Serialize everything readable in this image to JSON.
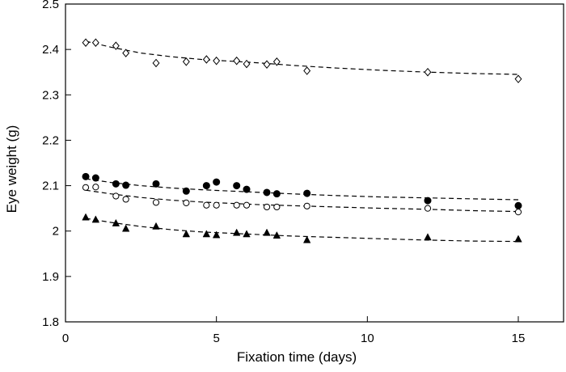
{
  "chart_data": {
    "type": "scatter",
    "xlabel": "Fixation time (days)",
    "ylabel": "Eye weight (g)",
    "xlim": [
      0,
      16.5
    ],
    "ylim": [
      1.8,
      2.5
    ],
    "x_ticks": [
      0,
      5,
      10,
      15
    ],
    "x_tick_labels": [
      "0",
      "5",
      "10",
      "15"
    ],
    "y_ticks": [
      1.8,
      1.9,
      2.0,
      2.1,
      2.2,
      2.3,
      2.4,
      2.5
    ],
    "y_tick_labels": [
      "1.8",
      "1.9",
      "2",
      "2.1",
      "2.2",
      "2.3",
      "2.4",
      "2.5"
    ],
    "grid": false,
    "legend": "none",
    "series": [
      {
        "marker": "open-diamond",
        "color": "#000000",
        "points": [
          [
            0.67,
            2.415
          ],
          [
            1.0,
            2.415
          ],
          [
            1.67,
            2.408
          ],
          [
            2.0,
            2.392
          ],
          [
            3.0,
            2.37
          ],
          [
            4.0,
            2.373
          ],
          [
            4.67,
            2.378
          ],
          [
            5.0,
            2.375
          ],
          [
            5.67,
            2.375
          ],
          [
            6.0,
            2.368
          ],
          [
            6.67,
            2.367
          ],
          [
            7.0,
            2.373
          ],
          [
            8.0,
            2.353
          ],
          [
            12.0,
            2.35
          ],
          [
            15.0,
            2.335
          ]
        ],
        "fit": [
          [
            0.67,
            2.418
          ],
          [
            1.5,
            2.405
          ],
          [
            2.5,
            2.392
          ],
          [
            3.5,
            2.384
          ],
          [
            4.5,
            2.378
          ],
          [
            5.5,
            2.374
          ],
          [
            6.5,
            2.37
          ],
          [
            7.5,
            2.365
          ],
          [
            9.0,
            2.359
          ],
          [
            10.5,
            2.354
          ],
          [
            12.0,
            2.35
          ],
          [
            13.5,
            2.347
          ],
          [
            15.0,
            2.345
          ]
        ]
      },
      {
        "marker": "filled-circle",
        "color": "#000000",
        "points": [
          [
            0.67,
            2.12
          ],
          [
            1.0,
            2.117
          ],
          [
            1.67,
            2.104
          ],
          [
            2.0,
            2.101
          ],
          [
            3.0,
            2.104
          ],
          [
            4.0,
            2.088
          ],
          [
            4.67,
            2.1
          ],
          [
            5.0,
            2.108
          ],
          [
            5.67,
            2.1
          ],
          [
            6.0,
            2.092
          ],
          [
            6.67,
            2.085
          ],
          [
            7.0,
            2.082
          ],
          [
            8.0,
            2.083
          ],
          [
            12.0,
            2.067
          ],
          [
            15.0,
            2.056
          ]
        ],
        "fit": [
          [
            0.67,
            2.115
          ],
          [
            1.5,
            2.107
          ],
          [
            2.5,
            2.1
          ],
          [
            3.5,
            2.095
          ],
          [
            4.5,
            2.091
          ],
          [
            5.5,
            2.088
          ],
          [
            6.5,
            2.085
          ],
          [
            7.5,
            2.082
          ],
          [
            9.0,
            2.078
          ],
          [
            10.5,
            2.075
          ],
          [
            12.0,
            2.073
          ],
          [
            13.5,
            2.071
          ],
          [
            15.0,
            2.069
          ]
        ]
      },
      {
        "marker": "open-circle",
        "color": "#000000",
        "points": [
          [
            0.67,
            2.096
          ],
          [
            1.0,
            2.097
          ],
          [
            1.67,
            2.077
          ],
          [
            2.0,
            2.07
          ],
          [
            3.0,
            2.063
          ],
          [
            4.0,
            2.062
          ],
          [
            4.67,
            2.057
          ],
          [
            5.0,
            2.057
          ],
          [
            5.67,
            2.057
          ],
          [
            6.0,
            2.057
          ],
          [
            6.67,
            2.053
          ],
          [
            7.0,
            2.053
          ],
          [
            8.0,
            2.055
          ],
          [
            12.0,
            2.05
          ],
          [
            15.0,
            2.042
          ]
        ],
        "fit": [
          [
            0.67,
            2.09
          ],
          [
            1.5,
            2.082
          ],
          [
            2.5,
            2.074
          ],
          [
            3.5,
            2.068
          ],
          [
            4.5,
            2.064
          ],
          [
            5.5,
            2.061
          ],
          [
            6.5,
            2.058
          ],
          [
            7.5,
            2.056
          ],
          [
            9.0,
            2.053
          ],
          [
            10.5,
            2.05
          ],
          [
            12.0,
            2.048
          ],
          [
            13.5,
            2.045
          ],
          [
            15.0,
            2.043
          ]
        ]
      },
      {
        "marker": "filled-triangle",
        "color": "#000000",
        "points": [
          [
            0.67,
            2.03
          ],
          [
            1.0,
            2.025
          ],
          [
            1.67,
            2.017
          ],
          [
            2.0,
            2.005
          ],
          [
            3.0,
            2.01
          ],
          [
            4.0,
            1.993
          ],
          [
            4.67,
            1.993
          ],
          [
            5.0,
            1.991
          ],
          [
            5.67,
            1.996
          ],
          [
            6.0,
            1.993
          ],
          [
            6.67,
            1.996
          ],
          [
            7.0,
            1.99
          ],
          [
            8.0,
            1.98
          ],
          [
            12.0,
            1.986
          ],
          [
            15.0,
            1.982
          ]
        ],
        "fit": [
          [
            0.67,
            2.028
          ],
          [
            1.5,
            2.019
          ],
          [
            2.5,
            2.01
          ],
          [
            3.5,
            2.003
          ],
          [
            4.5,
            1.998
          ],
          [
            5.5,
            1.995
          ],
          [
            6.5,
            1.992
          ],
          [
            7.5,
            1.989
          ],
          [
            9.0,
            1.986
          ],
          [
            10.5,
            1.983
          ],
          [
            12.0,
            1.98
          ],
          [
            13.5,
            1.978
          ],
          [
            15.0,
            1.977
          ]
        ]
      }
    ]
  }
}
